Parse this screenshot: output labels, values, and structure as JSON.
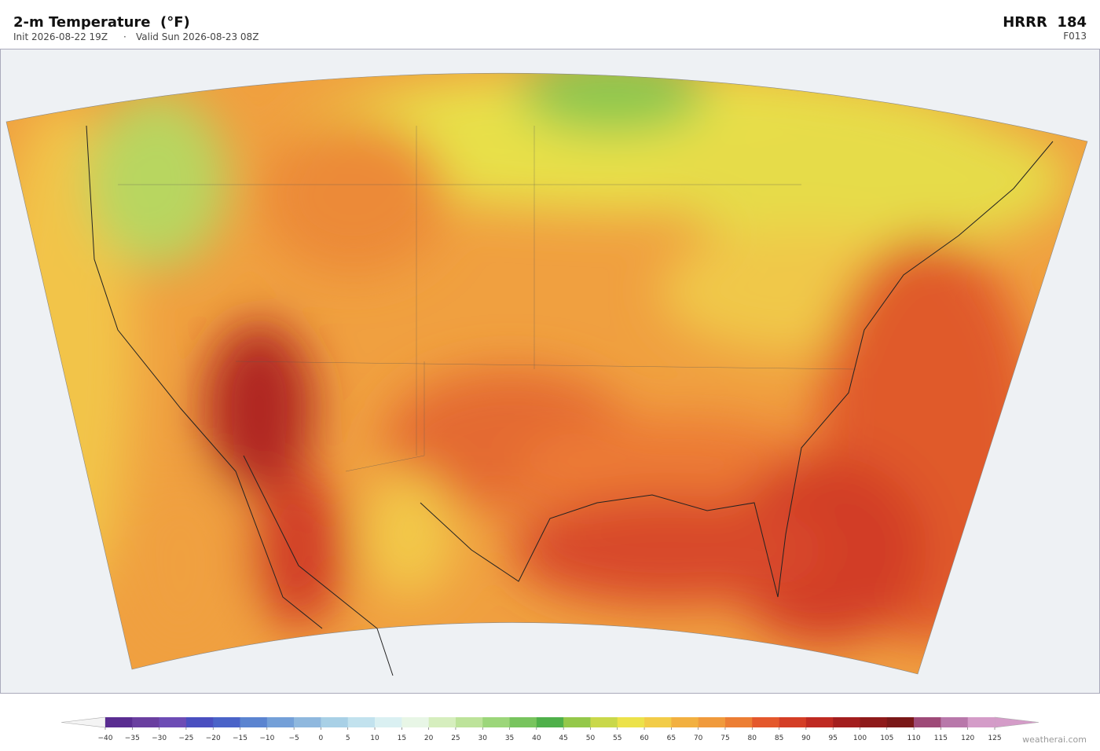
{
  "header": {
    "title": "2-m Temperature  (°F)",
    "init": "Init 2026-08-22 19Z",
    "separator": "·",
    "valid": "Valid Sun 2026-08-23 08Z",
    "model": "HRRR  184",
    "forecast_hour": "F013"
  },
  "colorbar": {
    "ticks": [
      {
        "value": -40,
        "label": "−40"
      },
      {
        "value": -35,
        "label": "−35"
      },
      {
        "value": -30,
        "label": "−30"
      },
      {
        "value": -25,
        "label": "−25"
      },
      {
        "value": -20,
        "label": "−20"
      },
      {
        "value": -15,
        "label": "−15"
      },
      {
        "value": -10,
        "label": "−10"
      },
      {
        "value": -5,
        "label": "−5"
      },
      0,
      5,
      10,
      15,
      20,
      25,
      30,
      35,
      40,
      45,
      50,
      55,
      60,
      65,
      70,
      75,
      80,
      85,
      90,
      95,
      100,
      105,
      110,
      115,
      120,
      125
    ],
    "colors": [
      "#5a2d91",
      "#6a3fa0",
      "#6d4cb5",
      "#4a4fc0",
      "#4a63c8",
      "#5b84d0",
      "#74a0d8",
      "#8fb8de",
      "#a8d0e6",
      "#c2e2ee",
      "#daf0f2",
      "#e8f6e6",
      "#d6eebe",
      "#bde39a",
      "#9cd67a",
      "#78c45e",
      "#4fb04a",
      "#94c84a",
      "#c9d84a",
      "#ece24a",
      "#f2cc48",
      "#f2b040",
      "#f09a3c",
      "#ec7e34",
      "#e4582c",
      "#d43e26",
      "#bf2a22",
      "#a31e1e",
      "#8e1a1a",
      "#7a1818",
      "#9e4a78",
      "#b878aa",
      "#d49cc8"
    ]
  },
  "credit": "weatherai.com"
}
